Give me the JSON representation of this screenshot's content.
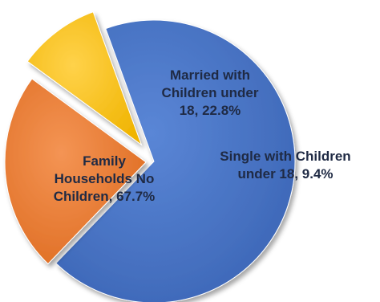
{
  "chart_data": {
    "type": "pie",
    "exploded": true,
    "slices": [
      {
        "label_lines": [
          "Family",
          "Households No",
          "Children, 67.7%"
        ],
        "category": "Family Households No Children",
        "value": 67.7,
        "color": "#4472C4",
        "label_color": "#1F2A44"
      },
      {
        "label_lines": [
          "Married with",
          "Children under",
          "18, 22.8%"
        ],
        "category": "Married with Children under 18",
        "value": 22.8,
        "color": "#ED7D31",
        "label_color": "#1F2A44"
      },
      {
        "label_lines": [
          "Single with Children",
          "under 18, 9.4%"
        ],
        "category": "Single with Children under 18",
        "value": 9.4,
        "color": "#FFC000",
        "label_color": "#1F2A44"
      }
    ]
  }
}
